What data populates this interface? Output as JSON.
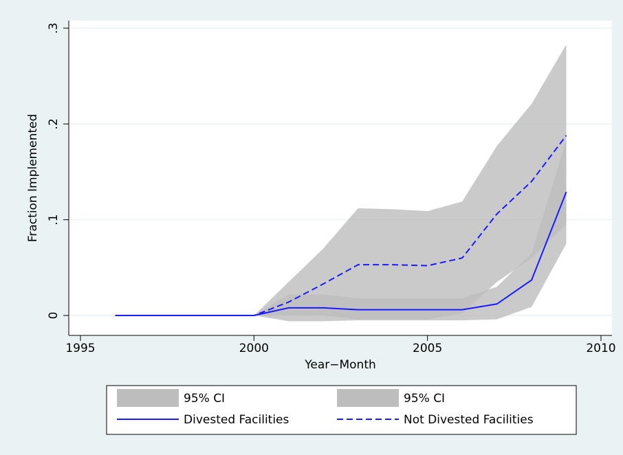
{
  "chart_data": {
    "type": "line",
    "x_label": "Year−Month",
    "y_label": "Fraction Implemented",
    "x": [
      1996,
      1997,
      1998,
      1999,
      2000,
      2001,
      2002,
      2003,
      2004,
      2005,
      2006,
      2007,
      2008,
      2009
    ],
    "bands": [
      {
        "name": "95% CI",
        "color": "#bdbdbd",
        "lower": [
          0,
          0,
          0,
          0,
          0,
          -0.006,
          -0.006,
          -0.005,
          -0.005,
          -0.005,
          -0.005,
          -0.004,
          0.009,
          0.075
        ],
        "upper": [
          0,
          0,
          0,
          0,
          0,
          0.022,
          0.022,
          0.018,
          0.018,
          0.018,
          0.018,
          0.03,
          0.065,
          0.183
        ]
      },
      {
        "name": "95% CI",
        "color": "#bdbdbd",
        "lower": [
          0,
          0,
          0,
          0,
          0,
          0,
          0,
          -0.004,
          -0.004,
          -0.004,
          0.002,
          0.035,
          0.06,
          0.095
        ],
        "upper": [
          0,
          0,
          0,
          0,
          0,
          0.035,
          0.07,
          0.112,
          0.111,
          0.109,
          0.119,
          0.177,
          0.221,
          0.283
        ]
      }
    ],
    "series": [
      {
        "name": "Divested Facilities",
        "color": "#1a1aff",
        "dash": false,
        "values": [
          0,
          0,
          0,
          0,
          0,
          0.008,
          0.008,
          0.006,
          0.006,
          0.006,
          0.006,
          0.012,
          0.037,
          0.129
        ]
      },
      {
        "name": "Not Divested Facilities",
        "color": "#1a1aff",
        "dash": true,
        "values": [
          0,
          0,
          0,
          0,
          0,
          0.014,
          0.033,
          0.053,
          0.053,
          0.052,
          0.06,
          0.106,
          0.14,
          0.188
        ]
      }
    ],
    "xlim": [
      1995,
      2010
    ],
    "xticks": [
      1995,
      2000,
      2005,
      2010
    ],
    "ylim": [
      0,
      0.3
    ],
    "yticks": [
      0,
      {
        "value": 0.1,
        "label": ".1"
      },
      {
        "value": 0.2,
        "label": ".2"
      },
      {
        "value": 0.3,
        "label": ".3"
      }
    ],
    "grid": true
  }
}
